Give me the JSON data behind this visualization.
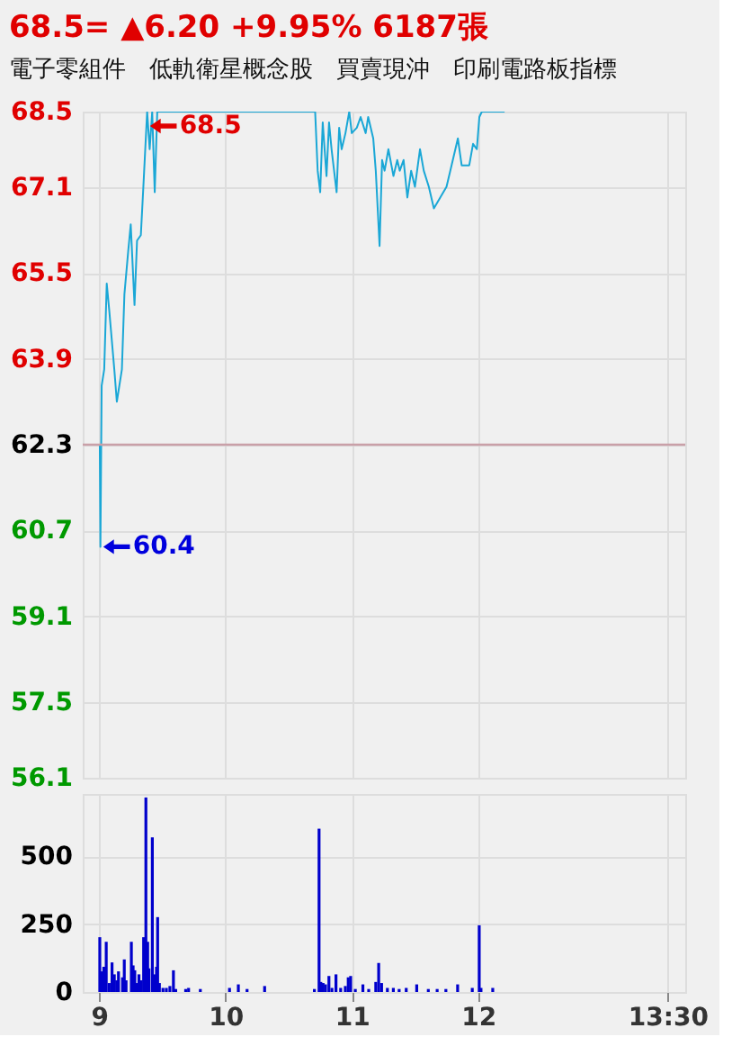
{
  "chart_data": [
    {
      "type": "line",
      "title": "68.5= ▲6.20 +9.95% 6187張",
      "subtitle": "電子零組件　低軌衛星概念股　買賣現沖　印刷電路板指標",
      "series": [
        {
          "color": "#1aa7d6",
          "x": [
            9.005,
            9.01,
            9.02,
            9.04,
            9.06,
            9.08,
            9.12,
            9.14,
            9.18,
            9.2,
            9.23,
            9.25,
            9.28,
            9.3,
            9.33,
            9.35,
            9.38,
            9.4,
            9.42,
            9.44,
            9.46,
            10.71,
            10.73,
            10.75,
            10.77,
            10.8,
            10.82,
            10.84,
            10.88,
            10.9,
            10.92,
            10.95,
            10.98,
            11.0,
            11.04,
            11.07,
            11.11,
            11.13,
            11.17,
            11.19,
            11.22,
            11.24,
            11.26,
            11.29,
            11.33,
            11.36,
            11.38,
            11.41,
            11.44,
            11.47,
            11.5,
            11.54,
            11.57,
            11.61,
            11.65,
            11.7,
            11.75,
            11.79,
            11.84,
            11.87,
            11.93,
            11.96,
            11.99,
            12.01,
            12.03,
            12.21
          ],
          "values": [
            62.3,
            60.4,
            63.4,
            63.7,
            65.3,
            64.8,
            63.7,
            63.1,
            63.7,
            65.1,
            65.9,
            66.4,
            64.9,
            66.1,
            66.2,
            67.1,
            68.5,
            67.8,
            68.5,
            67.0,
            68.5,
            68.5,
            67.4,
            67.0,
            68.3,
            67.3,
            68.3,
            67.8,
            67.0,
            68.2,
            67.8,
            68.1,
            68.5,
            68.1,
            68.2,
            68.4,
            68.1,
            68.4,
            68.0,
            67.4,
            66.0,
            67.6,
            67.4,
            67.8,
            67.3,
            67.6,
            67.4,
            67.6,
            66.9,
            67.4,
            67.1,
            67.8,
            67.4,
            67.1,
            66.7,
            66.9,
            67.1,
            67.5,
            68.0,
            67.5,
            67.5,
            67.9,
            67.8,
            68.4,
            68.5,
            68.5
          ]
        }
      ],
      "xlim": [
        8.87,
        13.64
      ],
      "xticks": [
        9,
        10,
        11,
        12,
        13.5
      ],
      "ylim": [
        56.1,
        68.5
      ],
      "yticks": [
        56.1,
        57.5,
        59.1,
        60.7,
        62.3,
        63.9,
        65.5,
        67.1,
        68.5
      ],
      "ref_lines": [
        {
          "axis": "y",
          "value": 62.3,
          "color": "#c9a0a8"
        }
      ],
      "annotations": [
        {
          "text": "68.5",
          "x": 9.38,
          "y": 68.5
        },
        {
          "text": "60.4",
          "x": 9.01,
          "y": 60.4
        }
      ],
      "grid": true,
      "tick_labels": "y"
    },
    {
      "type": "bar",
      "series": [
        {
          "color": "#0000cc",
          "x": [
            9.005,
            9.019,
            9.037,
            9.056,
            9.079,
            9.102,
            9.12,
            9.139,
            9.153,
            9.185,
            9.199,
            9.213,
            9.255,
            9.269,
            9.282,
            9.301,
            9.315,
            9.333,
            9.352,
            9.37,
            9.384,
            9.394,
            9.421,
            9.44,
            9.454,
            9.463,
            9.477,
            9.505,
            9.532,
            9.56,
            9.588,
            9.606,
            9.685,
            9.708,
            9.801,
            10.032,
            10.102,
            10.171,
            10.31,
            10.704,
            10.741,
            10.755,
            10.773,
            10.792,
            10.819,
            10.843,
            10.875,
            10.912,
            10.949,
            10.972,
            10.991,
            11.028,
            11.088,
            11.134,
            11.19,
            11.213,
            11.236,
            11.282,
            11.329,
            11.375,
            11.431,
            11.514,
            11.606,
            11.676,
            11.745,
            11.838,
            11.954,
            12.009,
            12.023,
            12.116
          ],
          "values": [
            202,
            76,
            93,
            185,
            33,
            109,
            65,
            43,
            76,
            54,
            120,
            43,
            185,
            98,
            80,
            33,
            65,
            43,
            202,
            717,
            185,
            87,
            570,
            65,
            93,
            276,
            33,
            15,
            15,
            22,
            80,
            11,
            11,
            15,
            11,
            15,
            28,
            11,
            22,
            11,
            602,
            37,
            33,
            28,
            59,
            15,
            65,
            15,
            22,
            54,
            59,
            11,
            28,
            11,
            37,
            107,
            33,
            15,
            15,
            11,
            15,
            28,
            11,
            11,
            11,
            28,
            15,
            246,
            15,
            15
          ]
        }
      ],
      "xlim": [
        8.87,
        13.64
      ],
      "xticks": [
        9,
        10,
        11,
        12,
        {
          "value": 13.5,
          "label": "13:30"
        }
      ],
      "ylim": [
        0,
        730
      ],
      "yticks": [
        0,
        250,
        500
      ],
      "grid": true
    }
  ]
}
